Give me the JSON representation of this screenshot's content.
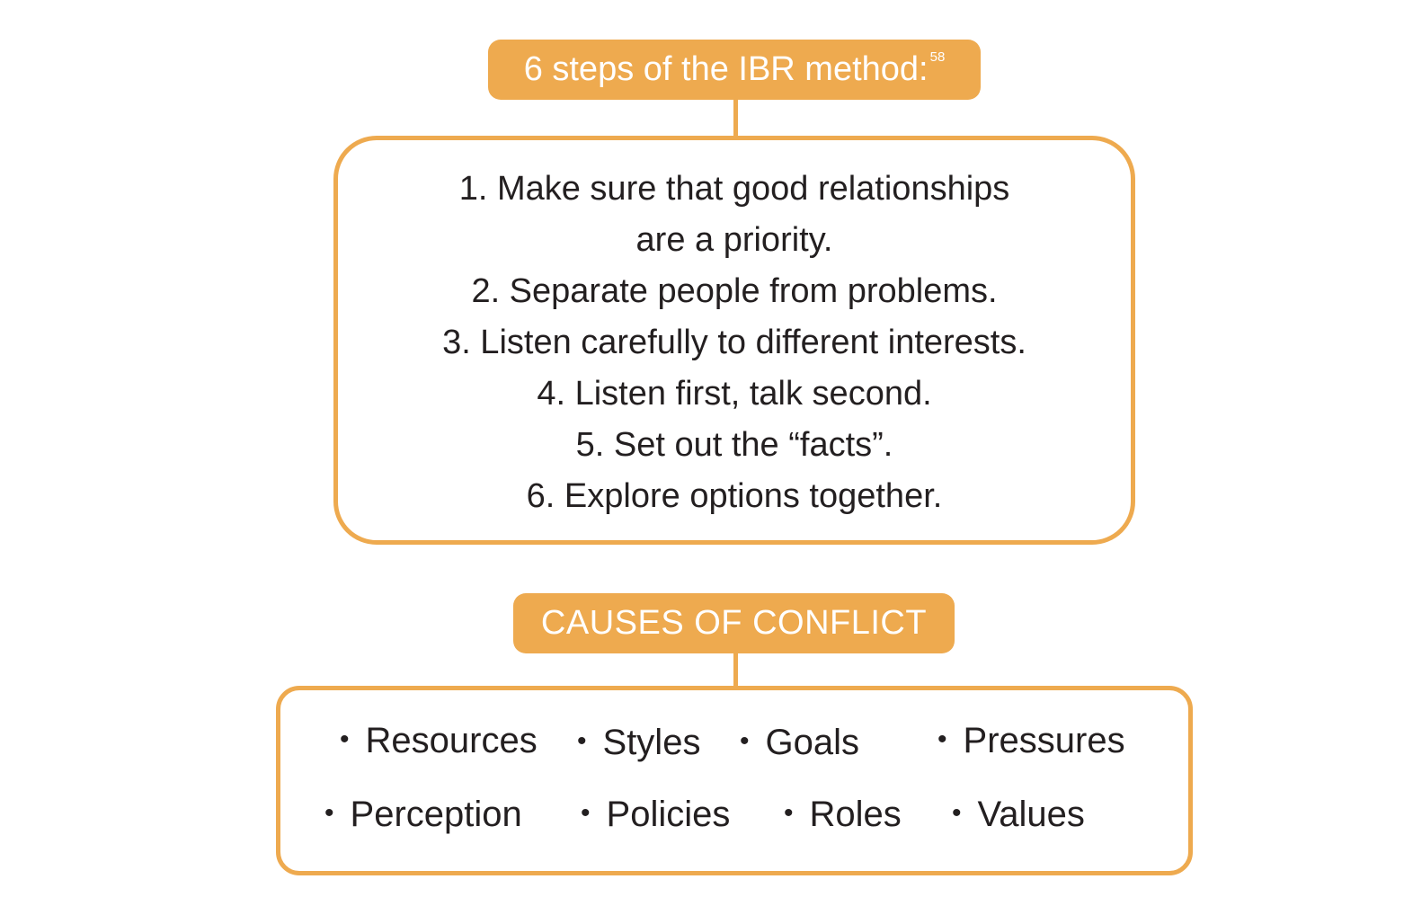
{
  "ibr": {
    "title": "6 steps of the IBR method:",
    "footnote": "58",
    "steps": [
      "1. Make sure that good relationships",
      "are a priority.",
      "2. Separate people from problems.",
      "3. Listen carefully to different interests.",
      "4. Listen first, talk second.",
      "5. Set out the “facts”.",
      "6. Explore options together."
    ]
  },
  "causes": {
    "title": "CAUSES OF CONFLICT",
    "bullet": "•",
    "items": [
      "Resources",
      "Styles",
      "Goals",
      "Pressures",
      "Perception",
      "Policies",
      "Roles",
      "Values"
    ]
  },
  "colors": {
    "accent": "#eeaa4f",
    "text": "#231f20",
    "background": "#ffffff"
  }
}
